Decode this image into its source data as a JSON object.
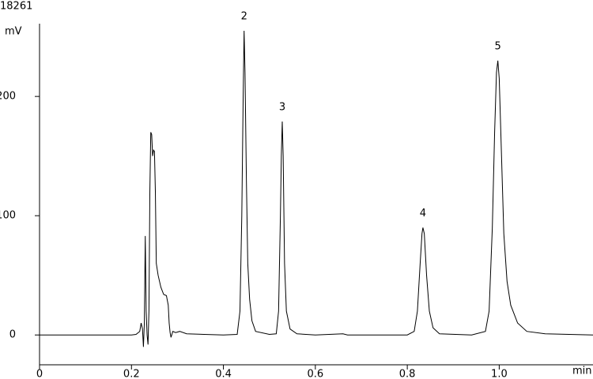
{
  "chart_data": {
    "type": "line",
    "title": "18261",
    "ylabel": "mV",
    "xlabel": "min",
    "xlim": [
      0,
      1.204
    ],
    "ylim": [
      -25,
      261
    ],
    "xticks": [
      0,
      0.2,
      0.4,
      0.6,
      0.8,
      {
        "value": 1,
        "label": "1.0"
      }
    ],
    "yticks": [
      0,
      100,
      200
    ],
    "series": [
      {
        "color": "#000000",
        "x": [
          0,
          0.2,
          0.21,
          0.218,
          0.221,
          0.224,
          0.226,
          0.228,
          0.23,
          0.232,
          0.234,
          0.236,
          0.238,
          0.24,
          0.242,
          0.244,
          0.246,
          0.248,
          0.25,
          0.252,
          0.254,
          0.258,
          0.264,
          0.27,
          0.276,
          0.28,
          0.282,
          0.284,
          0.286,
          0.29,
          0.296,
          0.305,
          0.32,
          0.4,
          0.43,
          0.436,
          0.44,
          0.443,
          0.445,
          0.447,
          0.45,
          0.453,
          0.457,
          0.462,
          0.47,
          0.5,
          0.515,
          0.52,
          0.524,
          0.526,
          0.528,
          0.53,
          0.533,
          0.537,
          0.545,
          0.56,
          0.6,
          0.66,
          0.67,
          0.8,
          0.815,
          0.822,
          0.828,
          0.832,
          0.834,
          0.837,
          0.842,
          0.848,
          0.856,
          0.87,
          0.94,
          0.97,
          0.978,
          0.985,
          0.99,
          0.994,
          0.997,
          1.0,
          1.005,
          1.01,
          1.017,
          1.025,
          1.04,
          1.06,
          1.1,
          1.204
        ],
        "values": [
          0,
          0,
          0.5,
          3,
          10,
          5,
          -10,
          10,
          83,
          20,
          0,
          -8,
          20,
          120,
          170,
          168,
          150,
          155,
          154,
          120,
          60,
          50,
          40,
          34,
          33,
          25,
          10,
          2,
          -2,
          3,
          2,
          3,
          1,
          0,
          0.5,
          20,
          100,
          200,
          255,
          220,
          130,
          60,
          30,
          12,
          3,
          0.5,
          1,
          20,
          100,
          150,
          179,
          150,
          60,
          20,
          5,
          1,
          0,
          1,
          0,
          0,
          3,
          20,
          60,
          85,
          90,
          85,
          50,
          20,
          6,
          1,
          0,
          3,
          20,
          90,
          170,
          220,
          230,
          215,
          150,
          85,
          45,
          25,
          10,
          3,
          1,
          0
        ]
      }
    ],
    "annotations": [
      {
        "text": "2",
        "x": 0.445,
        "y": 255
      },
      {
        "text": "3",
        "x": 0.528,
        "y": 179
      },
      {
        "text": "4",
        "x": 0.834,
        "y": 90
      },
      {
        "text": "5",
        "x": 0.997,
        "y": 230
      }
    ]
  }
}
